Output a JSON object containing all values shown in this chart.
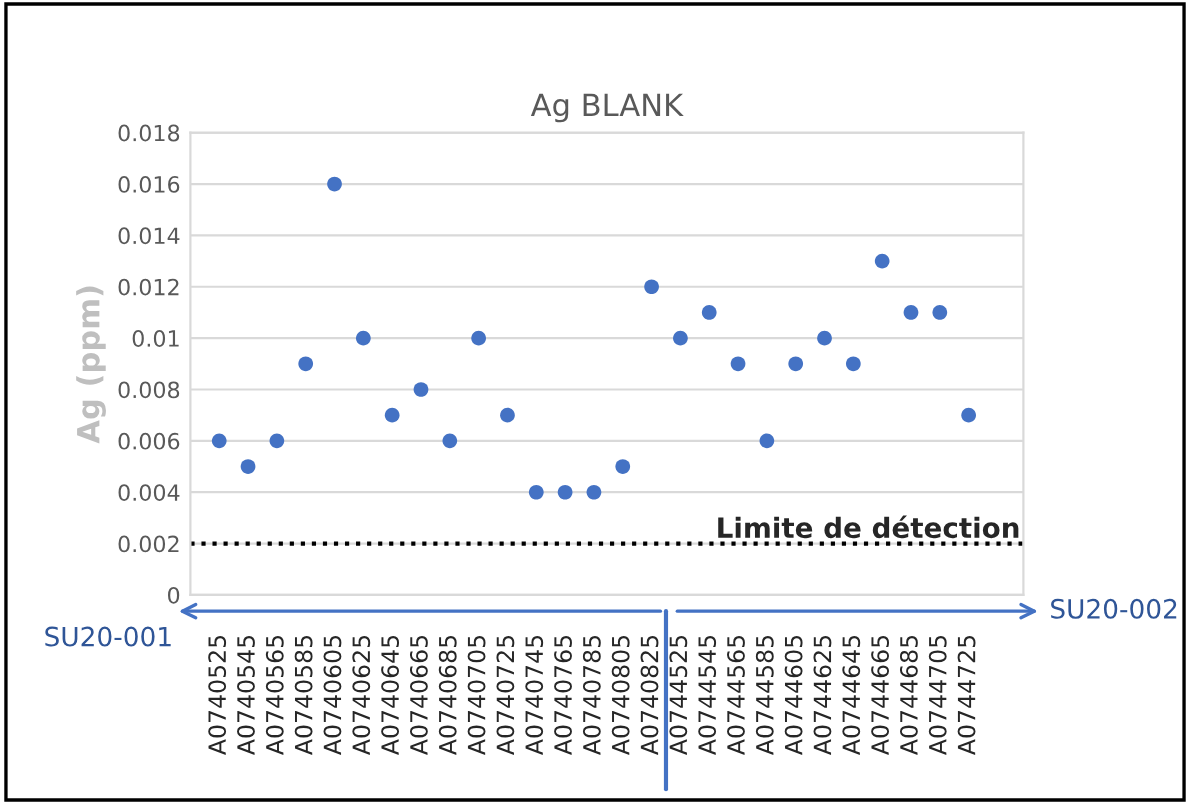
{
  "chart_data": {
    "type": "scatter",
    "title": "Ag BLANK",
    "ylabel": "Ag (ppm)",
    "categories": [
      "A0740525",
      "A0740545",
      "A0740565",
      "A0740585",
      "A0740605",
      "A0740625",
      "A0740645",
      "A0740665",
      "A0740685",
      "A0740705",
      "A0740725",
      "A0740745",
      "A0740765",
      "A0740785",
      "A0740805",
      "A0740825",
      "A0744525",
      "A0744545",
      "A0744565",
      "A0744585",
      "A0744605",
      "A0744625",
      "A0744645",
      "A0744665",
      "A0744685",
      "A0744705",
      "A0744725"
    ],
    "series": [
      {
        "color": "#4472c4",
        "values": [
          0.006,
          0.005,
          0.006,
          0.009,
          0.016,
          0.01,
          0.007,
          0.008,
          0.006,
          0.01,
          0.007,
          0.004,
          0.004,
          0.004,
          0.005,
          0.012,
          0.01,
          0.011,
          0.009,
          0.006,
          0.009,
          0.01,
          0.009,
          0.013,
          0.011,
          0.011,
          0.007
        ]
      }
    ],
    "ylim": [
      0,
      0.018
    ],
    "yticks": [
      0,
      0.002,
      0.004,
      0.006,
      0.008,
      0.01,
      0.012,
      0.014,
      0.016,
      0.018
    ],
    "grid": "y",
    "marker": "circle",
    "legend": false,
    "ref_lines": [
      {
        "axis": "y",
        "value": 0.002,
        "label": "Limite de détection",
        "color": "#000000",
        "line_style": "dotted"
      }
    ],
    "annotations": [
      "SU20-001",
      "SU20-002"
    ]
  }
}
